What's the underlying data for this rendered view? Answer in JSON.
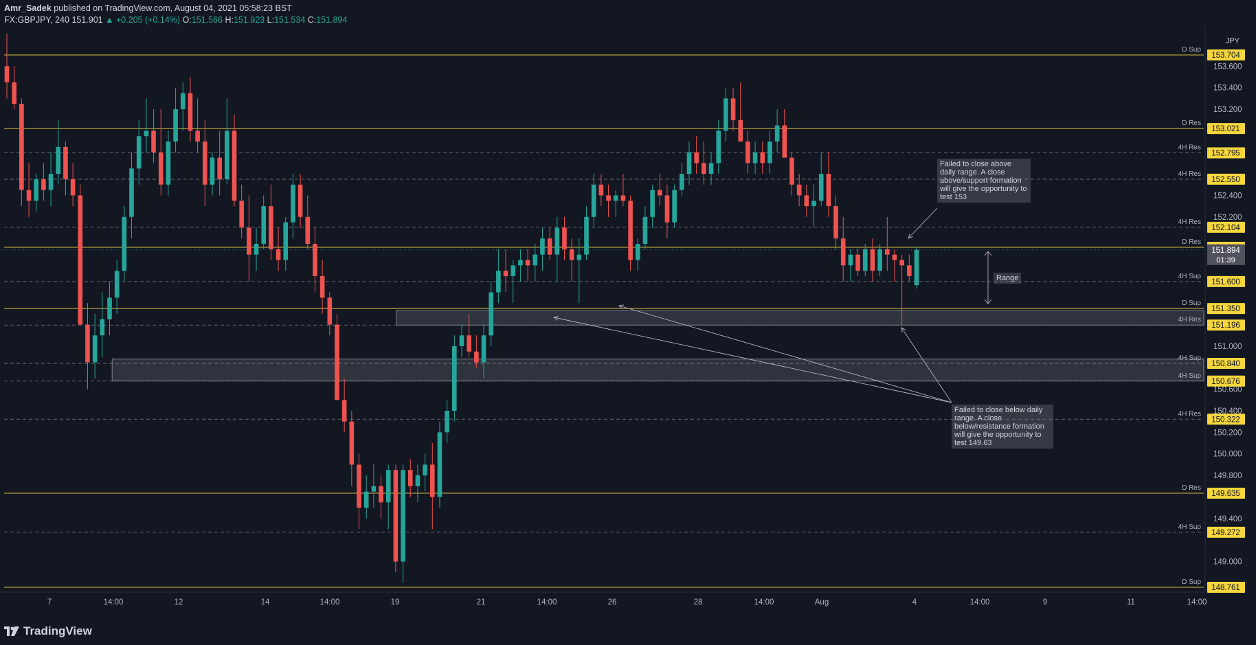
{
  "header": {
    "author": "Amr_Sadek",
    "published": "published on TradingView.com, August 04, 2021 05:58:23 BST",
    "symbol": "FX:GBPJPY, 240",
    "last": "151.901",
    "change": "▲ +0.205 (+0.14%)",
    "o_label": "O:",
    "o": "151.566",
    "h_label": "H:",
    "h": "151.923",
    "l_label": "L:",
    "l": "151.534",
    "c_label": "C:",
    "c": "151.894"
  },
  "colors": {
    "background": "#131722",
    "up": "#26a69a",
    "down": "#ef5350",
    "level_line": "#f0d040",
    "label_bg": "#f5d63d",
    "grid": "#1e222d",
    "text": "#d1d4dc"
  },
  "chart_data": {
    "type": "candlestick",
    "currency": "JPY",
    "y_range": [
      148.7,
      154.1
    ],
    "y_ticks": [
      "153.600",
      "153.400",
      "153.200",
      "152.400",
      "152.200",
      "151.000",
      "150.600",
      "150.400",
      "150.200",
      "150.000",
      "149.800",
      "149.400",
      "149.000"
    ],
    "x_ticks": [
      "7",
      "14:00",
      "12",
      "14",
      "14:00",
      "19",
      "21",
      "14:00",
      "26",
      "28",
      "14:00",
      "Aug",
      "4",
      "14:00",
      "9",
      "11",
      "14:00"
    ],
    "levels": [
      {
        "price": 153.704,
        "label": "153.704",
        "tag": "D Sup",
        "style": "solid"
      },
      {
        "price": 153.021,
        "label": "153.021",
        "tag": "D Res",
        "style": "solid"
      },
      {
        "price": 152.795,
        "label": "152.795",
        "tag": "4H Res",
        "style": "dashed"
      },
      {
        "price": 152.55,
        "label": "152.550",
        "tag": "4H Res",
        "style": "dashed"
      },
      {
        "price": 152.104,
        "label": "152.104",
        "tag": "4H Res",
        "style": "dashed"
      },
      {
        "price": 151.918,
        "label": "151.918",
        "tag": "D Res",
        "style": "solid"
      },
      {
        "price": 151.6,
        "label": "151.600",
        "tag": "4H Sup",
        "style": "dashed"
      },
      {
        "price": 151.35,
        "label": "151.350",
        "tag": "D Sup",
        "style": "solid"
      },
      {
        "price": 151.196,
        "label": "151.196",
        "tag": "4H Res",
        "style": "dashed"
      },
      {
        "price": 150.84,
        "label": "150.840",
        "tag": "4H Sup",
        "style": "dashed"
      },
      {
        "price": 150.676,
        "label": "150.676",
        "tag": "4H Sup",
        "style": "dashed"
      },
      {
        "price": 150.322,
        "label": "150.322",
        "tag": "4H Res",
        "style": "dashed"
      },
      {
        "price": 149.635,
        "label": "149.635",
        "tag": "D Res",
        "style": "solid"
      },
      {
        "price": 149.272,
        "label": "149.272",
        "tag": "4H Sup",
        "style": "dashed"
      },
      {
        "price": 148.761,
        "label": "148.761",
        "tag": "D Sup",
        "style": "solid"
      }
    ],
    "current_price": {
      "price": 151.894,
      "label": "151.894",
      "countdown": "01:39"
    },
    "zones": [
      {
        "from": 151.196,
        "to": 151.33,
        "x_start": 0.327
      },
      {
        "from": 150.676,
        "to": 150.88,
        "x_start": 0.09
      }
    ],
    "annotations": [
      {
        "text": "Failed to close above daily range. A close above/support formation will give the opportunity to test 153"
      },
      {
        "text": "Range"
      },
      {
        "text": "Failed to close below daily range. A close below/resistance formation will give the opportunity to test 149.63"
      }
    ],
    "candles_ohlc": [
      [
        153.6,
        153.9,
        153.3,
        153.45
      ],
      [
        153.45,
        153.6,
        153.2,
        153.25
      ],
      [
        153.25,
        153.3,
        152.3,
        152.45
      ],
      [
        152.45,
        152.7,
        152.2,
        152.35
      ],
      [
        152.35,
        152.6,
        152.25,
        152.55
      ],
      [
        152.55,
        152.7,
        152.35,
        152.45
      ],
      [
        152.45,
        152.8,
        152.3,
        152.6
      ],
      [
        152.6,
        153.1,
        152.5,
        152.85
      ],
      [
        152.85,
        152.9,
        152.4,
        152.55
      ],
      [
        152.55,
        152.7,
        152.3,
        152.4
      ],
      [
        152.4,
        152.5,
        151.5,
        151.2
      ],
      [
        151.2,
        151.4,
        150.6,
        150.85
      ],
      [
        150.85,
        151.3,
        150.7,
        151.1
      ],
      [
        151.1,
        151.5,
        150.9,
        151.25
      ],
      [
        151.25,
        151.6,
        151.1,
        151.45
      ],
      [
        151.45,
        151.8,
        151.3,
        151.7
      ],
      [
        151.7,
        152.3,
        151.6,
        152.2
      ],
      [
        152.2,
        152.8,
        152.0,
        152.65
      ],
      [
        152.65,
        153.1,
        152.5,
        152.95
      ],
      [
        152.95,
        153.3,
        152.8,
        153.0
      ],
      [
        153.0,
        153.2,
        152.7,
        152.8
      ],
      [
        152.8,
        153.2,
        152.4,
        152.5
      ],
      [
        152.5,
        153.0,
        152.4,
        152.9
      ],
      [
        152.9,
        153.4,
        152.8,
        153.2
      ],
      [
        153.2,
        153.45,
        153.0,
        153.35
      ],
      [
        153.35,
        153.5,
        152.9,
        153.0
      ],
      [
        153.0,
        153.3,
        152.8,
        152.9
      ],
      [
        152.9,
        153.1,
        152.3,
        152.5
      ],
      [
        152.5,
        152.8,
        152.4,
        152.75
      ],
      [
        152.75,
        153.0,
        152.4,
        152.55
      ],
      [
        152.55,
        153.3,
        152.5,
        153.0
      ],
      [
        153.0,
        153.15,
        152.3,
        152.35
      ],
      [
        152.35,
        152.5,
        152.0,
        152.1
      ],
      [
        152.1,
        152.4,
        151.6,
        151.85
      ],
      [
        151.85,
        152.1,
        151.7,
        151.95
      ],
      [
        151.95,
        152.4,
        151.9,
        152.3
      ],
      [
        152.3,
        152.5,
        151.8,
        151.9
      ],
      [
        151.9,
        152.1,
        151.7,
        151.8
      ],
      [
        151.8,
        152.2,
        151.7,
        152.15
      ],
      [
        152.15,
        152.6,
        152.0,
        152.5
      ],
      [
        152.5,
        152.6,
        152.1,
        152.2
      ],
      [
        152.2,
        152.4,
        151.9,
        151.95
      ],
      [
        151.95,
        152.1,
        151.5,
        151.65
      ],
      [
        151.65,
        151.8,
        151.3,
        151.45
      ],
      [
        151.45,
        151.5,
        151.1,
        151.2
      ],
      [
        151.2,
        151.3,
        150.6,
        150.5
      ],
      [
        150.5,
        150.7,
        150.2,
        150.3
      ],
      [
        150.3,
        150.4,
        149.7,
        149.9
      ],
      [
        149.9,
        150.0,
        149.3,
        149.5
      ],
      [
        149.5,
        149.8,
        149.4,
        149.65
      ],
      [
        149.65,
        149.9,
        149.5,
        149.7
      ],
      [
        149.7,
        149.8,
        149.4,
        149.55
      ],
      [
        149.55,
        149.9,
        149.3,
        149.85
      ],
      [
        149.85,
        149.9,
        148.9,
        149.0
      ],
      [
        149.0,
        149.9,
        148.8,
        149.85
      ],
      [
        149.85,
        149.95,
        149.6,
        149.7
      ],
      [
        149.7,
        149.9,
        149.55,
        149.8
      ],
      [
        149.8,
        150.0,
        149.65,
        149.9
      ],
      [
        149.9,
        150.1,
        149.3,
        149.6
      ],
      [
        149.6,
        150.3,
        149.5,
        150.2
      ],
      [
        150.2,
        150.5,
        150.1,
        150.4
      ],
      [
        150.4,
        151.1,
        150.3,
        151.0
      ],
      [
        151.0,
        151.2,
        150.9,
        151.1
      ],
      [
        151.1,
        151.3,
        150.9,
        150.95
      ],
      [
        150.95,
        151.1,
        150.8,
        150.85
      ],
      [
        150.85,
        151.2,
        150.7,
        151.1
      ],
      [
        151.1,
        151.6,
        151.0,
        151.5
      ],
      [
        151.5,
        151.9,
        151.4,
        151.7
      ],
      [
        151.7,
        151.9,
        151.5,
        151.65
      ],
      [
        151.65,
        151.8,
        151.4,
        151.75
      ],
      [
        151.75,
        151.9,
        151.6,
        151.8
      ],
      [
        151.8,
        151.9,
        151.6,
        151.75
      ],
      [
        151.75,
        151.95,
        151.6,
        151.85
      ],
      [
        151.85,
        152.1,
        151.7,
        152.0
      ],
      [
        152.0,
        152.1,
        151.8,
        151.85
      ],
      [
        151.85,
        152.2,
        151.6,
        152.1
      ],
      [
        152.1,
        152.2,
        151.8,
        151.9
      ],
      [
        151.9,
        152.0,
        151.6,
        151.8
      ],
      [
        151.8,
        152.0,
        151.4,
        151.85
      ],
      [
        151.85,
        152.3,
        151.8,
        152.2
      ],
      [
        152.2,
        152.6,
        152.1,
        152.5
      ],
      [
        152.5,
        152.6,
        152.3,
        152.4
      ],
      [
        152.4,
        152.5,
        152.2,
        152.35
      ],
      [
        152.35,
        152.45,
        152.2,
        152.4
      ],
      [
        152.4,
        152.6,
        152.3,
        152.35
      ],
      [
        152.35,
        152.4,
        151.7,
        151.8
      ],
      [
        151.8,
        152.0,
        151.7,
        151.95
      ],
      [
        151.95,
        152.3,
        151.9,
        152.2
      ],
      [
        152.2,
        152.5,
        152.1,
        152.45
      ],
      [
        152.45,
        152.6,
        152.3,
        152.4
      ],
      [
        152.4,
        152.5,
        152.0,
        152.15
      ],
      [
        152.15,
        152.5,
        152.1,
        152.45
      ],
      [
        152.45,
        152.7,
        152.4,
        152.6
      ],
      [
        152.6,
        152.9,
        152.5,
        152.8
      ],
      [
        152.8,
        152.95,
        152.6,
        152.7
      ],
      [
        152.7,
        152.9,
        152.5,
        152.6
      ],
      [
        152.6,
        152.8,
        152.5,
        152.7
      ],
      [
        152.7,
        153.1,
        152.6,
        153.0
      ],
      [
        153.0,
        153.4,
        152.9,
        153.3
      ],
      [
        153.3,
        153.4,
        153.0,
        153.1
      ],
      [
        153.1,
        153.45,
        153.0,
        152.9
      ],
      [
        152.9,
        153.0,
        152.6,
        152.7
      ],
      [
        152.7,
        152.9,
        152.6,
        152.8
      ],
      [
        152.8,
        152.9,
        152.6,
        152.7
      ],
      [
        152.7,
        153.0,
        152.6,
        152.9
      ],
      [
        152.9,
        153.2,
        152.8,
        153.05
      ],
      [
        153.05,
        153.2,
        152.9,
        152.75
      ],
      [
        152.75,
        152.8,
        152.4,
        152.5
      ],
      [
        152.5,
        152.6,
        152.3,
        152.4
      ],
      [
        152.4,
        152.5,
        152.2,
        152.3
      ],
      [
        152.3,
        152.5,
        152.1,
        152.35
      ],
      [
        152.35,
        152.8,
        152.3,
        152.6
      ],
      [
        152.6,
        152.8,
        152.2,
        152.3
      ],
      [
        152.3,
        152.4,
        151.9,
        152.0
      ],
      [
        152.0,
        152.2,
        151.6,
        151.75
      ],
      [
        151.75,
        151.9,
        151.6,
        151.85
      ],
      [
        151.85,
        151.9,
        151.65,
        151.7
      ],
      [
        151.7,
        151.95,
        151.65,
        151.9
      ],
      [
        151.9,
        152.0,
        151.6,
        151.7
      ],
      [
        151.7,
        151.95,
        151.65,
        151.9
      ],
      [
        151.9,
        152.2,
        151.7,
        151.85
      ],
      [
        151.85,
        151.9,
        151.6,
        151.8
      ],
      [
        151.8,
        151.85,
        151.2,
        151.75
      ],
      [
        151.75,
        151.85,
        151.6,
        151.65
      ],
      [
        151.566,
        151.923,
        151.534,
        151.894
      ]
    ]
  }
}
